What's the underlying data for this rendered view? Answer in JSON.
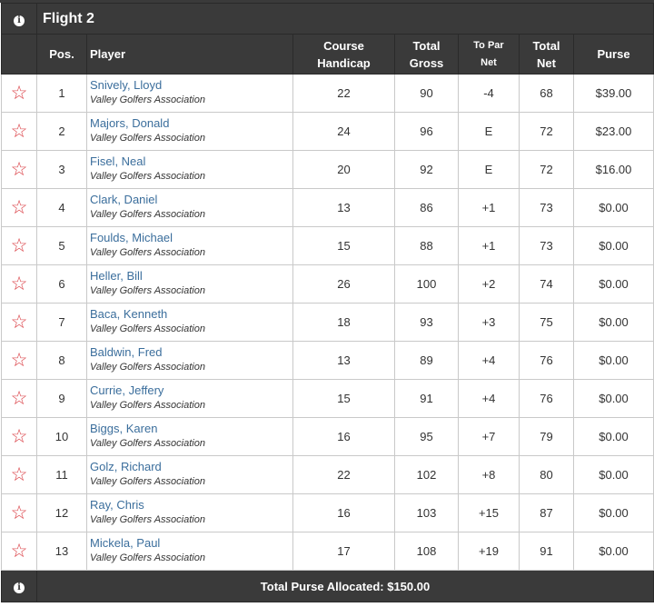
{
  "flight": {
    "title": "Flight 2"
  },
  "headers": {
    "pos": "Pos.",
    "player": "Player",
    "course_handicap_1": "Course",
    "course_handicap_2": "Handicap",
    "total_gross_1": "Total",
    "total_gross_2": "Gross",
    "to_par_net_1": "To Par",
    "to_par_net_2": "Net",
    "total_net_1": "Total",
    "total_net_2": "Net",
    "purse": "Purse"
  },
  "icons": {
    "info": "info-icon",
    "favorite": "star-outline-icon"
  },
  "rows": [
    {
      "pos": "1",
      "name": "Snively, Lloyd",
      "assoc": "Valley Golfers Association",
      "handicap": "22",
      "gross": "90",
      "topar": "-4",
      "net": "68",
      "purse": "$39.00"
    },
    {
      "pos": "2",
      "name": "Majors, Donald",
      "assoc": "Valley Golfers Association",
      "handicap": "24",
      "gross": "96",
      "topar": "E",
      "net": "72",
      "purse": "$23.00"
    },
    {
      "pos": "3",
      "name": "Fisel, Neal",
      "assoc": "Valley Golfers Association",
      "handicap": "20",
      "gross": "92",
      "topar": "E",
      "net": "72",
      "purse": "$16.00"
    },
    {
      "pos": "4",
      "name": "Clark, Daniel",
      "assoc": "Valley Golfers Association",
      "handicap": "13",
      "gross": "86",
      "topar": "+1",
      "net": "73",
      "purse": "$0.00"
    },
    {
      "pos": "5",
      "name": "Foulds, Michael",
      "assoc": "Valley Golfers Association",
      "handicap": "15",
      "gross": "88",
      "topar": "+1",
      "net": "73",
      "purse": "$0.00"
    },
    {
      "pos": "6",
      "name": "Heller, Bill",
      "assoc": "Valley Golfers Association",
      "handicap": "26",
      "gross": "100",
      "topar": "+2",
      "net": "74",
      "purse": "$0.00"
    },
    {
      "pos": "7",
      "name": "Baca, Kenneth",
      "assoc": "Valley Golfers Association",
      "handicap": "18",
      "gross": "93",
      "topar": "+3",
      "net": "75",
      "purse": "$0.00"
    },
    {
      "pos": "8",
      "name": "Baldwin, Fred",
      "assoc": "Valley Golfers Association",
      "handicap": "13",
      "gross": "89",
      "topar": "+4",
      "net": "76",
      "purse": "$0.00"
    },
    {
      "pos": "9",
      "name": "Currie, Jeffery",
      "assoc": "Valley Golfers Association",
      "handicap": "15",
      "gross": "91",
      "topar": "+4",
      "net": "76",
      "purse": "$0.00"
    },
    {
      "pos": "10",
      "name": "Biggs, Karen",
      "assoc": "Valley Golfers Association",
      "handicap": "16",
      "gross": "95",
      "topar": "+7",
      "net": "79",
      "purse": "$0.00"
    },
    {
      "pos": "11",
      "name": "Golz, Richard",
      "assoc": "Valley Golfers Association",
      "handicap": "22",
      "gross": "102",
      "topar": "+8",
      "net": "80",
      "purse": "$0.00"
    },
    {
      "pos": "12",
      "name": "Ray, Chris",
      "assoc": "Valley Golfers Association",
      "handicap": "16",
      "gross": "103",
      "topar": "+15",
      "net": "87",
      "purse": "$0.00"
    },
    {
      "pos": "13",
      "name": "Mickela, Paul",
      "assoc": "Valley Golfers Association",
      "handicap": "17",
      "gross": "108",
      "topar": "+19",
      "net": "91",
      "purse": "$0.00"
    }
  ],
  "footer": {
    "total_purse": "Total Purse Allocated: $150.00"
  },
  "colors": {
    "header_bg": "#3a3a3a",
    "under_par": "#d9393f",
    "even_par": "#2e9b2e",
    "over_par": "#8a2c9b",
    "player_link": "#3b6e9c",
    "star": "#d9393f"
  }
}
